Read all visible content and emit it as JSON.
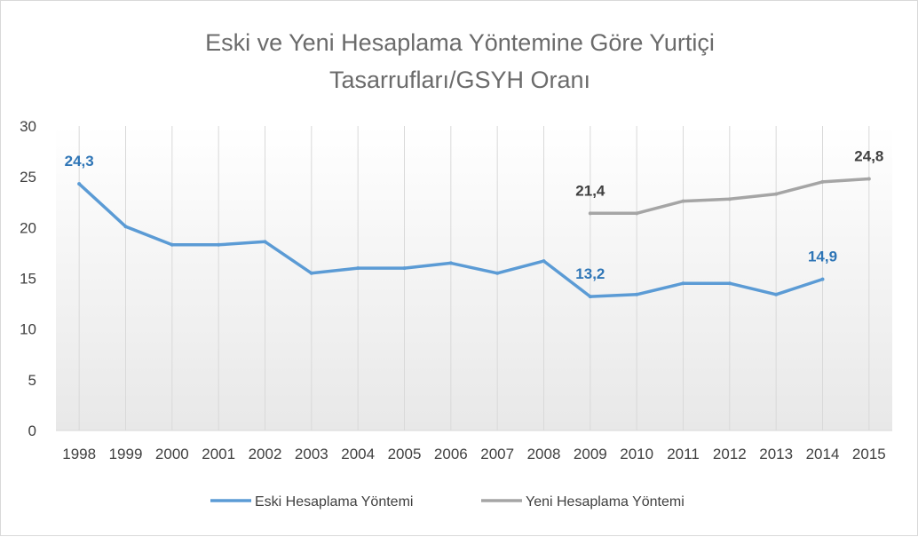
{
  "chart_data": {
    "type": "line",
    "title_line1": "Eski ve Yeni Hesaplama Yöntemine Göre Yurtiçi",
    "title_line2": "Tasarrufları/GSYH Oranı",
    "xlabel": "",
    "ylabel": "",
    "ylim": [
      0,
      30
    ],
    "yticks": [
      "0",
      "5",
      "10",
      "15",
      "20",
      "25",
      "30"
    ],
    "categories": [
      "1998",
      "1999",
      "2000",
      "2001",
      "2002",
      "2003",
      "2004",
      "2005",
      "2006",
      "2007",
      "2008",
      "2009",
      "2010",
      "2011",
      "2012",
      "2013",
      "2014",
      "2015"
    ],
    "grid": "vertical",
    "legend_position": "bottom",
    "series": [
      {
        "name": "Eski Hesaplama Yöntemi",
        "color": "#5b9bd5",
        "values": [
          24.3,
          20.1,
          18.3,
          18.3,
          18.6,
          15.5,
          16.0,
          16.0,
          16.5,
          15.5,
          16.7,
          13.2,
          13.4,
          14.5,
          14.5,
          13.4,
          14.9,
          null
        ]
      },
      {
        "name": "Yeni Hesaplama Yöntemi",
        "color": "#a5a5a5",
        "values": [
          null,
          null,
          null,
          null,
          null,
          null,
          null,
          null,
          null,
          null,
          null,
          21.4,
          21.4,
          22.6,
          22.8,
          23.3,
          24.5,
          24.8
        ]
      }
    ],
    "data_labels": [
      {
        "series": 0,
        "category": "1998",
        "text": "24,3",
        "color": "#2e75b6"
      },
      {
        "series": 0,
        "category": "2009",
        "text": "13,2",
        "color": "#2e75b6"
      },
      {
        "series": 0,
        "category": "2014",
        "text": "14,9",
        "color": "#2e75b6"
      },
      {
        "series": 1,
        "category": "2009",
        "text": "21,4",
        "color": "#404040"
      },
      {
        "series": 1,
        "category": "2015",
        "text": "24,8",
        "color": "#404040"
      }
    ]
  }
}
